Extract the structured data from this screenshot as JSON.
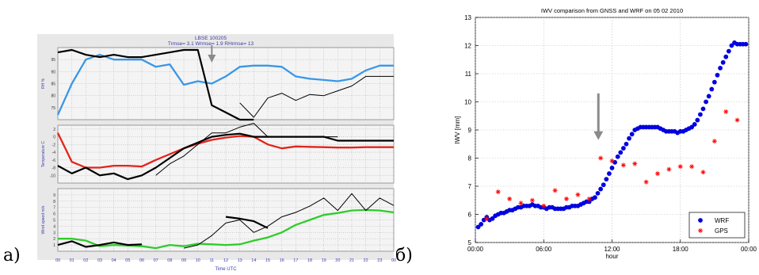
{
  "panel_labels": [
    "a)",
    "б)"
  ],
  "chart_data": [
    {
      "type": "line",
      "annotation_lines": [
        "LBSE 100205",
        "Trmse= 3.1   Wrmse= 1.9   RHrmse= 13"
      ],
      "xlabel": "Time  UTC",
      "x_ticks": [
        "00",
        "01",
        "02",
        "03",
        "04",
        "05",
        "06",
        "07",
        "08",
        "09",
        "10",
        "11",
        "12",
        "13",
        "14",
        "15",
        "16",
        "17",
        "18",
        "19",
        "20",
        "21",
        "22",
        "23",
        "00"
      ],
      "arrow_x_hour": 11,
      "grid": true,
      "subplots": [
        {
          "ylabel": "RH %",
          "ylim": [
            70,
            100
          ],
          "yticks": [
            75,
            80,
            85,
            90,
            95
          ],
          "series": [
            {
              "color": "#3a97e6",
              "values": [
                72,
                85,
                95,
                97,
                95,
                95,
                95,
                92,
                93,
                84.5,
                86,
                85,
                88,
                92,
                92.5,
                92.5,
                92,
                88,
                87,
                86.5,
                86,
                87,
                90.5,
                92.5,
                92.5
              ]
            },
            {
              "color": "#000000",
              "bold": true,
              "values": [
                98,
                99,
                97,
                96,
                97,
                96,
                96,
                97,
                98,
                99,
                99,
                76,
                73,
                70,
                70,
                null,
                null,
                null,
                null,
                null,
                null,
                null,
                null,
                null,
                null
              ]
            },
            {
              "color": "#000000",
              "values": [
                null,
                null,
                null,
                null,
                null,
                null,
                null,
                null,
                null,
                null,
                null,
                null,
                null,
                77,
                71,
                79,
                81,
                78,
                80.5,
                80,
                82,
                84,
                88,
                88,
                88
              ]
            }
          ]
        },
        {
          "ylabel": "Temperature  C",
          "ylim": [
            -12,
            3
          ],
          "yticks": [
            -10,
            -8,
            -6,
            -4,
            -2,
            0,
            2
          ],
          "series": [
            {
              "color": "#e3241b",
              "values": [
                1,
                -6.5,
                -8,
                -8,
                -7.5,
                -7.5,
                -7.7,
                -6,
                -4.5,
                -3,
                -1.8,
                -0.8,
                -0.2,
                0.2,
                0,
                -2,
                -3,
                -2.5,
                -2.6,
                -2.7,
                -2.8,
                -2.8,
                -2.7,
                -2.7,
                -2.7
              ]
            },
            {
              "color": "#000000",
              "bold": true,
              "values": [
                -7.5,
                -9.5,
                -8,
                -10,
                -9.5,
                -11,
                -10,
                -8,
                -5.5,
                -3,
                -1.5,
                0,
                0.5,
                0.8,
                0,
                0,
                0,
                0,
                0,
                0,
                -1,
                -1,
                -1,
                -1,
                -1
              ]
            },
            {
              "color": "#000000",
              "values": [
                null,
                null,
                null,
                null,
                null,
                null,
                null,
                -10,
                -7,
                -5,
                -2,
                1,
                1,
                2.5,
                3.5,
                0,
                0,
                0,
                0,
                0,
                0,
                null,
                null,
                null,
                null
              ]
            }
          ]
        },
        {
          "ylabel": "Wind speed m/s",
          "ylim": [
            0,
            10
          ],
          "yticks": [
            1,
            2,
            3,
            4,
            5,
            6,
            7,
            8,
            9
          ],
          "series": [
            {
              "color": "#2ecc2a",
              "values": [
                2,
                2,
                1.7,
                0.8,
                1,
                0.9,
                0.8,
                0.5,
                1,
                0.8,
                1.2,
                1.1,
                1,
                1.1,
                1.7,
                2.2,
                3,
                4.2,
                5,
                5.8,
                6.1,
                6.5,
                6.6,
                6.5,
                6.2
              ]
            },
            {
              "color": "#000000",
              "bold": true,
              "values": [
                1,
                1.6,
                0.7,
                1,
                1.4,
                1,
                1.1,
                null,
                null,
                null,
                null,
                null,
                5.5,
                5.2,
                4.8,
                3.7,
                null,
                null,
                null,
                null,
                null,
                null,
                null,
                null,
                null
              ]
            },
            {
              "color": "#000000",
              "values": [
                null,
                null,
                null,
                null,
                null,
                null,
                null,
                null,
                null,
                0.5,
                1,
                2.5,
                4.5,
                5,
                3,
                4,
                5.5,
                6.2,
                7.2,
                8.5,
                6.5,
                9.2,
                6.5,
                8.5,
                7.3
              ]
            }
          ]
        }
      ]
    },
    {
      "type": "scatter",
      "title": "IWV comparison from GNSS and WRF on 05 02 2010",
      "xlabel": "hour",
      "ylabel": "IWV [mm]",
      "xlim": [
        0,
        24
      ],
      "ylim": [
        5,
        13
      ],
      "x_ticks": [
        {
          "value": 0,
          "label": "00:00"
        },
        {
          "value": 6,
          "label": "06:00"
        },
        {
          "value": 12,
          "label": "12:00"
        },
        {
          "value": 18,
          "label": "18:00"
        },
        {
          "value": 24,
          "label": "00:00"
        }
      ],
      "y_ticks": [
        5,
        6,
        7,
        8,
        9,
        10,
        11,
        12,
        13
      ],
      "grid": true,
      "legend_position": "bottom-right",
      "arrow": {
        "x": 10.8,
        "y_from": 10.3,
        "y_to": 8.7
      },
      "series": [
        {
          "name": "WRF",
          "color": "#0000e0",
          "marker": "dot",
          "x": [
            0.25,
            0.5,
            0.75,
            1.0,
            1.25,
            1.5,
            1.75,
            2.0,
            2.25,
            2.5,
            2.75,
            3.0,
            3.25,
            3.5,
            3.75,
            4.0,
            4.25,
            4.5,
            4.75,
            5.0,
            5.25,
            5.5,
            5.75,
            6.0,
            6.25,
            6.5,
            6.75,
            7.0,
            7.25,
            7.5,
            7.75,
            8.0,
            8.25,
            8.5,
            8.75,
            9.0,
            9.25,
            9.5,
            9.75,
            10.0,
            10.25,
            10.5,
            10.75,
            11.0,
            11.25,
            11.5,
            11.75,
            12.0,
            12.25,
            12.5,
            12.75,
            13.0,
            13.25,
            13.5,
            13.75,
            14.0,
            14.25,
            14.5,
            14.75,
            15.0,
            15.25,
            15.5,
            15.75,
            16.0,
            16.25,
            16.5,
            16.75,
            17.0,
            17.25,
            17.5,
            17.75,
            18.0,
            18.25,
            18.5,
            18.75,
            19.0,
            19.25,
            19.5,
            19.75,
            20.0,
            20.25,
            20.5,
            20.75,
            21.0,
            21.25,
            21.5,
            21.75,
            22.0,
            22.25,
            22.5,
            22.75,
            23.0,
            23.25,
            23.5,
            23.75
          ],
          "values": [
            5.55,
            5.65,
            5.8,
            5.9,
            5.8,
            5.85,
            5.95,
            6.0,
            6.05,
            6.05,
            6.1,
            6.15,
            6.15,
            6.2,
            6.25,
            6.25,
            6.3,
            6.3,
            6.3,
            6.35,
            6.3,
            6.3,
            6.25,
            6.25,
            6.2,
            6.25,
            6.25,
            6.2,
            6.2,
            6.2,
            6.2,
            6.25,
            6.25,
            6.3,
            6.3,
            6.3,
            6.35,
            6.4,
            6.45,
            6.45,
            6.55,
            6.6,
            6.75,
            6.9,
            7.05,
            7.25,
            7.45,
            7.65,
            7.85,
            8.05,
            8.2,
            8.35,
            8.5,
            8.7,
            8.85,
            9.0,
            9.05,
            9.1,
            9.1,
            9.1,
            9.1,
            9.1,
            9.1,
            9.1,
            9.05,
            9.0,
            8.95,
            8.95,
            8.95,
            8.95,
            8.9,
            8.95,
            8.95,
            9.0,
            9.05,
            9.1,
            9.2,
            9.35,
            9.55,
            9.75,
            10.0,
            10.2,
            10.45,
            10.7,
            10.95,
            11.2,
            11.4,
            11.6,
            11.8,
            12.0,
            12.1,
            12.05,
            12.05,
            12.05,
            12.05
          ]
        },
        {
          "name": "GPS",
          "color": "#ff0000",
          "marker": "star",
          "x": [
            1,
            2,
            3,
            4,
            5,
            6,
            7,
            8,
            9,
            10,
            11,
            12,
            13,
            14,
            15,
            16,
            17,
            18,
            19,
            20,
            21,
            22,
            23
          ],
          "values": [
            5.85,
            6.8,
            6.55,
            6.4,
            6.5,
            6.3,
            6.85,
            6.55,
            6.7,
            6.55,
            8.0,
            7.9,
            7.75,
            7.8,
            7.15,
            7.45,
            7.6,
            7.7,
            7.7,
            7.5,
            8.6,
            9.65,
            9.35
          ]
        }
      ]
    }
  ]
}
